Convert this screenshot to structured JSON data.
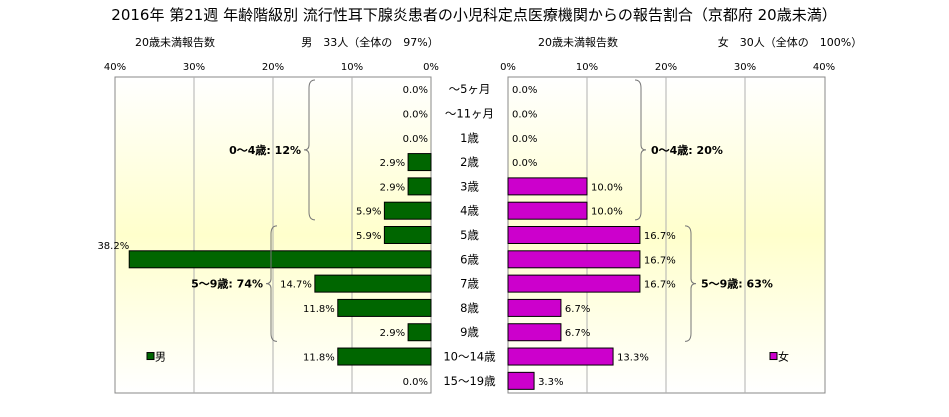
{
  "chart_data": {
    "type": "bar",
    "orientation": "horizontal",
    "layout": "population-pyramid",
    "title": "2016年 第21週 年齢階級別 流行性耳下腺炎患者の小児科定点医療機関からの報告割合（京都府 20歳未満）",
    "left_header": {
      "label": "20歳未満報告数",
      "summary": "男　33人（全体の　97%）"
    },
    "right_header": {
      "label": "20歳未満報告数",
      "summary": "女　30人（全体の　100%）"
    },
    "categories": [
      "～5ヶ月",
      "～11ヶ月",
      "1歳",
      "2歳",
      "3歳",
      "4歳",
      "5歳",
      "6歳",
      "7歳",
      "8歳",
      "9歳",
      "10～14歳",
      "15～19歳"
    ],
    "series": [
      {
        "name": "男",
        "side": "left",
        "color": "#006600",
        "values": [
          0.0,
          0.0,
          0.0,
          2.9,
          2.9,
          5.9,
          5.9,
          38.2,
          14.7,
          11.8,
          2.9,
          11.8,
          0.0
        ],
        "value_labels": [
          "0.0%",
          "0.0%",
          "0.0%",
          "2.9%",
          "2.9%",
          "5.9%",
          "5.9%",
          "38.2%",
          "14.7%",
          "11.8%",
          "2.9%",
          "11.8%",
          "0.0%"
        ]
      },
      {
        "name": "女",
        "side": "right",
        "color": "#cc00cc",
        "values": [
          0.0,
          0.0,
          0.0,
          0.0,
          10.0,
          10.0,
          16.7,
          16.7,
          16.7,
          6.7,
          6.7,
          13.3,
          3.3
        ],
        "value_labels": [
          "0.0%",
          "0.0%",
          "0.0%",
          "0.0%",
          "10.0%",
          "10.0%",
          "16.7%",
          "16.7%",
          "16.7%",
          "6.7%",
          "6.7%",
          "13.3%",
          "3.3%"
        ]
      }
    ],
    "axis_max": 40,
    "ticks": [
      0,
      10,
      20,
      30,
      40
    ],
    "tick_labels": [
      "0%",
      "10%",
      "20%",
      "30%",
      "40%"
    ],
    "groups": [
      {
        "side": "left",
        "label": "0～4歳: 12%",
        "from": 0,
        "to": 5
      },
      {
        "side": "left",
        "label": "5～9歳: 74%",
        "from": 6,
        "to": 10
      },
      {
        "side": "right",
        "label": "0～4歳: 20%",
        "from": 0,
        "to": 5
      },
      {
        "side": "right",
        "label": "5～9歳: 63%",
        "from": 6,
        "to": 10
      }
    ],
    "legend": [
      "男",
      "女"
    ],
    "legend_placement": "bottom-left / bottom-right",
    "grid": true,
    "background": "yellow-white gradient"
  }
}
